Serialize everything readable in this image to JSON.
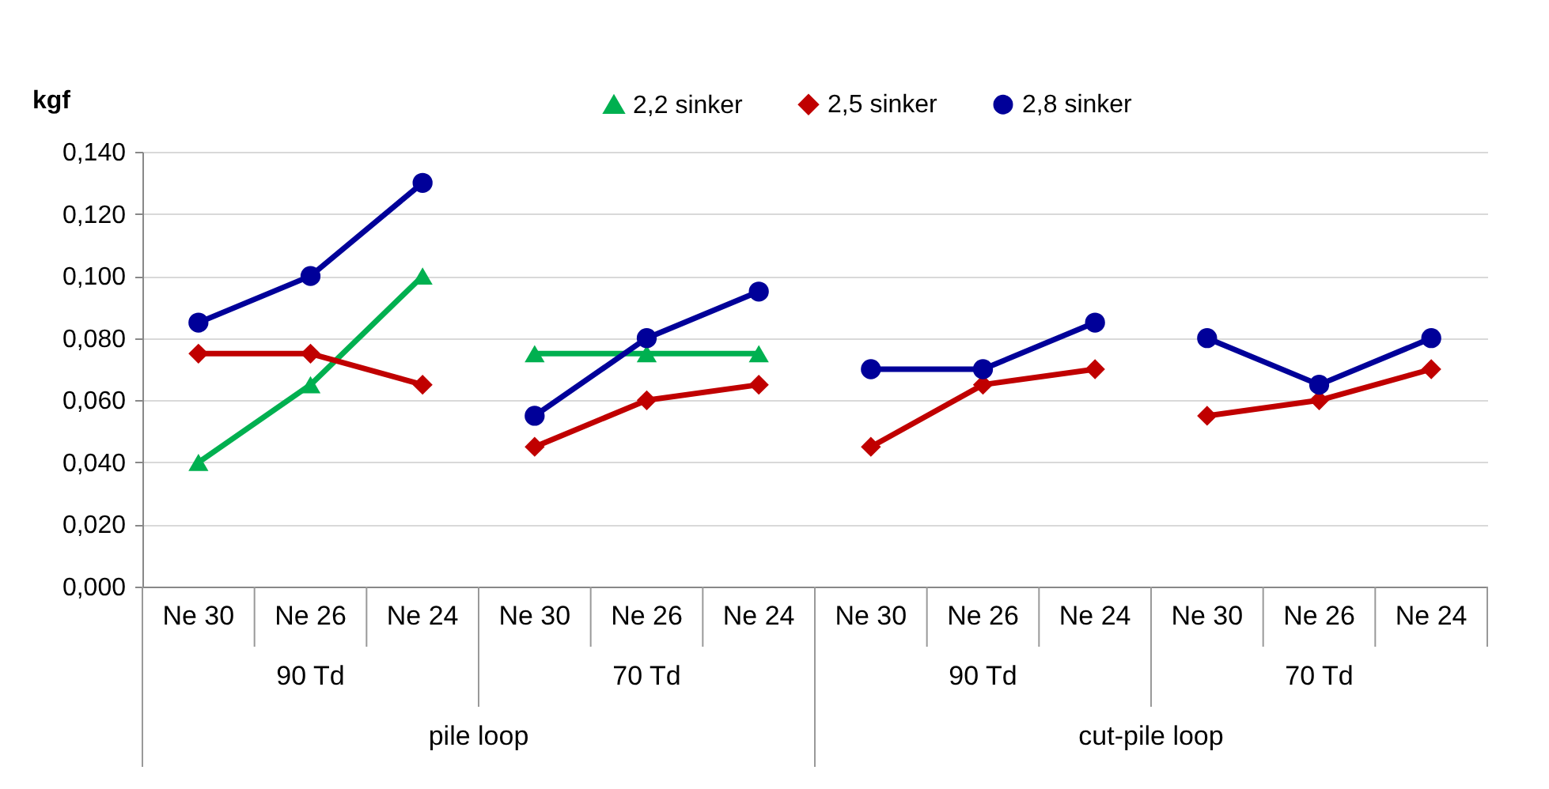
{
  "chart_data": {
    "type": "line",
    "ylabel": "kgf",
    "categories": [
      "Ne 30",
      "Ne 26",
      "Ne 24",
      "Ne 30",
      "Ne 26",
      "Ne 24",
      "Ne 30",
      "Ne 26",
      "Ne 24",
      "Ne 30",
      "Ne 26",
      "Ne 24"
    ],
    "annotations": [
      "90 Td",
      "70 Td",
      "90 Td",
      "70 Td",
      "pile loop",
      "cut-pile loop"
    ],
    "series": [
      {
        "name": "2,2 sinker",
        "color": "#00b050",
        "marker": "triangle",
        "values": [
          0.04,
          0.065,
          0.1,
          0.075,
          0.075,
          0.075,
          null,
          null,
          null,
          null,
          null,
          null
        ]
      },
      {
        "name": "2,5 sinker",
        "color": "#c00000",
        "marker": "diamond",
        "values": [
          0.075,
          0.075,
          0.065,
          0.045,
          0.06,
          0.065,
          0.045,
          0.065,
          0.07,
          0.055,
          0.06,
          0.07
        ]
      },
      {
        "name": "2,8 sinker",
        "color": "#000099",
        "marker": "circle",
        "values": [
          0.085,
          0.1,
          0.13,
          0.055,
          0.08,
          0.095,
          0.07,
          0.07,
          0.085,
          0.08,
          0.065,
          0.08
        ]
      }
    ],
    "ylim": [
      0,
      0.14
    ],
    "yticks": [
      {
        "value": 0,
        "label": "0,000"
      },
      {
        "value": 0.02,
        "label": "0,020"
      },
      {
        "value": 0.04,
        "label": "0,040"
      },
      {
        "value": 0.06,
        "label": "0,060"
      },
      {
        "value": 0.08,
        "label": "0,080"
      },
      {
        "value": 0.1,
        "label": "0,100"
      },
      {
        "value": 0.12,
        "label": "0,120"
      },
      {
        "value": 0.14,
        "label": "0,140"
      }
    ],
    "grid": "y",
    "legend": "top right",
    "line_style": "solid"
  }
}
